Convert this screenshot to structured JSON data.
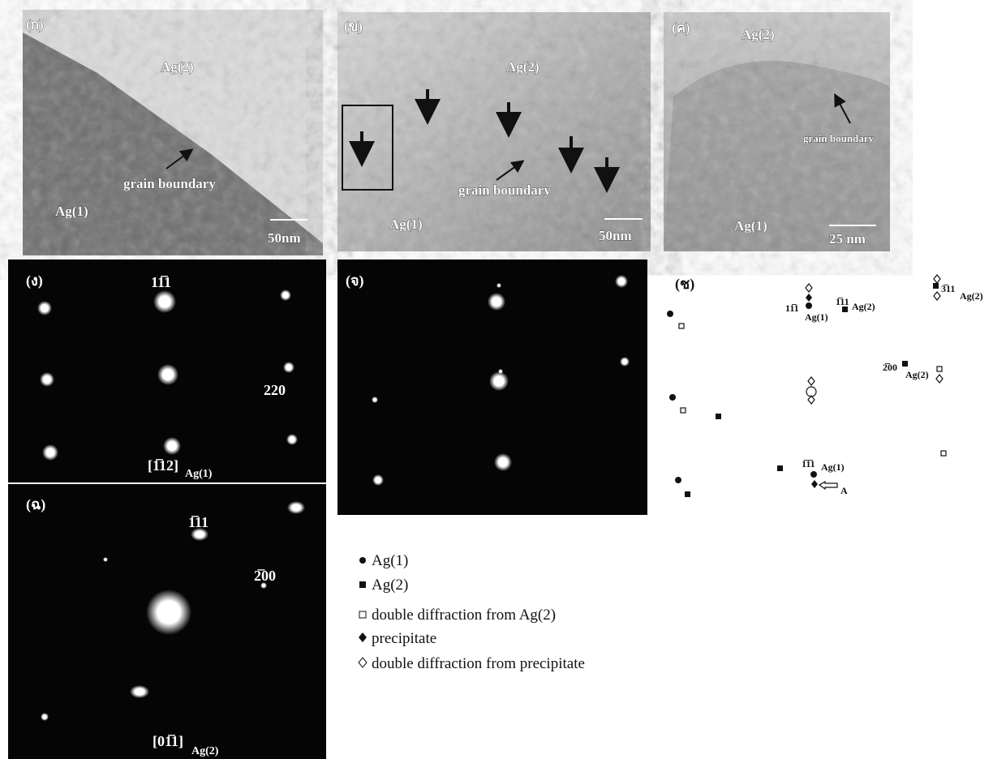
{
  "panels": {
    "a": {
      "label": "(ก)",
      "grain_top": "Ag(2)",
      "boundary": "grain boundary",
      "grain_bottom": "Ag(1)",
      "scale": "50nm"
    },
    "b": {
      "label": "(ข)",
      "grain_top": "Ag(2)",
      "boundary": "grain boundary",
      "grain_bottom": "Ag(1)",
      "scale": "50nm"
    },
    "c": {
      "label": "(ค)",
      "grain_top": "Ag(2)",
      "boundary": "grain boundary",
      "grain_bottom": "Ag(1)",
      "scale": "25 nm"
    },
    "d": {
      "label": "(ง)",
      "spot_top": "11̅1",
      "spot_right": "220",
      "zone": "[1̅12]",
      "zone_sub": "Ag(1)"
    },
    "e": {
      "label": "(จ)"
    },
    "f": {
      "label": "(ฉ)",
      "spot_top": "1̅11",
      "spot_right": "2̅00",
      "zone": "[01̅1]",
      "zone_sub": "Ag(2)"
    },
    "g": {
      "label": "(ช)",
      "spots": [
        {
          "index": "11̅1",
          "phase": "Ag(1)"
        },
        {
          "index": "1̅11",
          "phase": "Ag(2)"
        },
        {
          "index": "3̅11",
          "phase": "Ag(2)"
        },
        {
          "index": "2̅00",
          "phase": "Ag(2)"
        },
        {
          "index": "1̅1̅1",
          "phase": "Ag(1)"
        }
      ],
      "arrow": "A"
    }
  },
  "legend": [
    "Ag(1)",
    "Ag(2)",
    "double diffraction from Ag(2)",
    "precipitate",
    "double diffraction from precipitate"
  ]
}
